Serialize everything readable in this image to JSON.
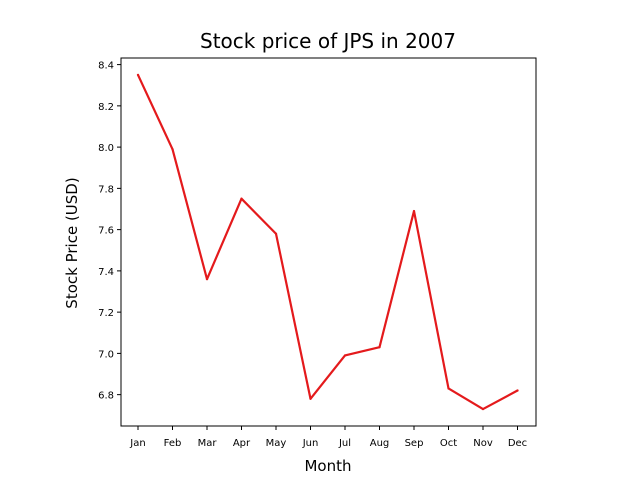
{
  "chart_data": {
    "type": "line",
    "title": "Stock price of JPS in 2007",
    "xlabel": "Month",
    "ylabel": "Stock Price (USD)",
    "categories": [
      "Jan",
      "Feb",
      "Mar",
      "Apr",
      "May",
      "Jun",
      "Jul",
      "Aug",
      "Sep",
      "Oct",
      "Nov",
      "Dec"
    ],
    "series": [
      {
        "values": [
          8.35,
          7.99,
          7.36,
          7.75,
          7.58,
          6.78,
          6.99,
          7.03,
          7.69,
          6.83,
          6.73,
          6.82
        ],
        "color": "#e41a1c"
      }
    ],
    "yticks": [
      "6.8",
      "7.0",
      "7.2",
      "7.4",
      "7.6",
      "7.8",
      "8.0",
      "8.2",
      "8.4"
    ],
    "ylim": [
      6.648,
      8.432
    ],
    "grid": false,
    "legend": "none"
  }
}
